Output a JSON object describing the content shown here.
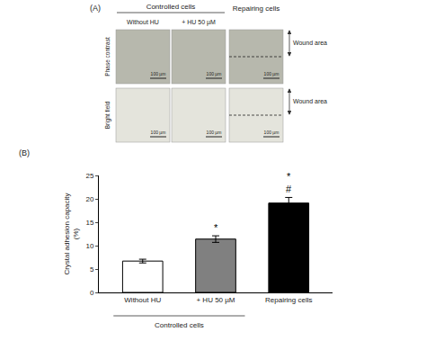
{
  "panel_a": {
    "label": "(A)",
    "group_label": "Controlled cells",
    "columns": [
      "Without HU",
      "+ HU 50 µM",
      "Repairing cells"
    ],
    "rows": [
      "Phase contrast",
      "Bright field"
    ],
    "scale_bar": "100 µm",
    "wound_label": "Wound area"
  },
  "chart_data": {
    "type": "bar",
    "panel_label": "(B)",
    "y_label": [
      "Crystal adhesion capacity",
      "(%)"
    ],
    "categories": [
      "Without HU",
      "+ HU 50 µM",
      "Repairing cells"
    ],
    "values": [
      6.7,
      11.4,
      19.1
    ],
    "errors": [
      0.4,
      0.7,
      1.2
    ],
    "colors": [
      "#ffffff",
      "#808080",
      "#000000"
    ],
    "ylim": [
      0,
      25
    ],
    "yticks": [
      0,
      5,
      10,
      15,
      20,
      25
    ],
    "grid": false,
    "annotations": [
      {
        "category": "+ HU 50 µM",
        "text": [
          "*"
        ]
      },
      {
        "category": "Repairing cells",
        "text": [
          "*",
          "#"
        ]
      }
    ],
    "groups": [
      {
        "label": "Controlled cells",
        "categories": [
          "Without HU",
          "+ HU 50 µM"
        ]
      }
    ]
  }
}
